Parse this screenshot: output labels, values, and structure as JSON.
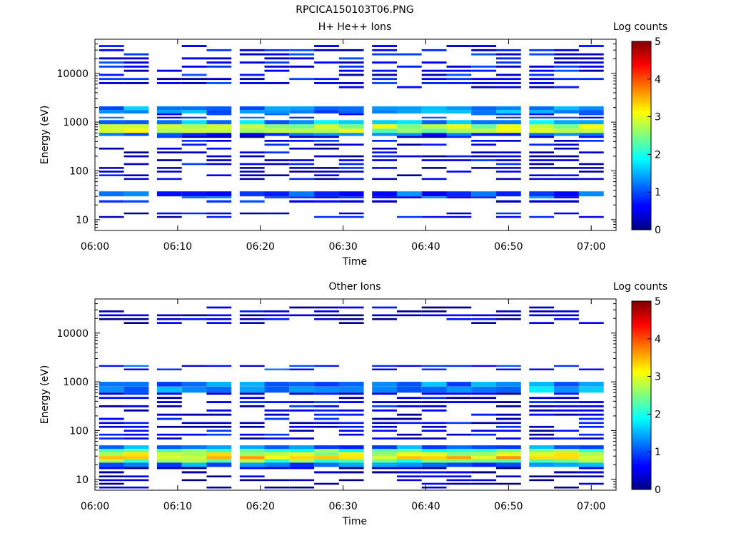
{
  "figure": {
    "title": "RPCICA150103T06.PNG"
  },
  "chart_data": [
    {
      "type": "heatmap",
      "title": "H+ He++ Ions",
      "xlabel": "Time",
      "ylabel": "Energy (eV)",
      "x_ticks": [
        "06:00",
        "06:10",
        "06:20",
        "06:30",
        "06:40",
        "06:50",
        "07:00"
      ],
      "x_range": [
        "06:00",
        "07:03"
      ],
      "y_scale": "log",
      "y_ticks": [
        10,
        100,
        1000,
        10000
      ],
      "y_range": [
        6,
        50000
      ],
      "colorbar": {
        "label": "Log counts",
        "range": [
          0,
          5
        ],
        "ticks": [
          0,
          1,
          2,
          3,
          4,
          5
        ]
      },
      "grid": false,
      "time_bins": [
        "06:02",
        "06:05",
        "06:09",
        "06:12",
        "06:15",
        "06:19",
        "06:22",
        "06:25",
        "06:28",
        "06:31",
        "06:35",
        "06:38",
        "06:41",
        "06:44",
        "06:47",
        "06:50",
        "06:54",
        "06:57",
        "07:00"
      ],
      "energy_bins": [
        [
          4500,
          38000,
          0.6
        ],
        [
          1500,
          2100,
          1.3
        ],
        [
          1100,
          1500,
          0.8
        ],
        [
          900,
          1100,
          1.5
        ],
        [
          600,
          900,
          2.7
        ],
        [
          520,
          600,
          1.0
        ],
        [
          120,
          520,
          0.5
        ],
        [
          60,
          120,
          0.4
        ],
        [
          30,
          38,
          1.0
        ],
        [
          25,
          30,
          0.9
        ],
        [
          20,
          25,
          0.6
        ],
        [
          10,
          14,
          0.5
        ]
      ]
    },
    {
      "type": "heatmap",
      "title": "Other Ions",
      "xlabel": "Time",
      "ylabel": "Energy (eV)",
      "x_ticks": [
        "06:00",
        "06:10",
        "06:20",
        "06:30",
        "06:40",
        "06:50",
        "07:00"
      ],
      "x_range": [
        "06:00",
        "07:03"
      ],
      "y_scale": "log",
      "y_ticks": [
        10,
        100,
        1000,
        10000
      ],
      "y_range": [
        6,
        50000
      ],
      "colorbar": {
        "label": "Log counts",
        "range": [
          0,
          5
        ],
        "ticks": [
          0,
          1,
          2,
          3,
          4,
          5
        ]
      },
      "grid": false,
      "time_bins": [
        "06:02",
        "06:05",
        "06:09",
        "06:12",
        "06:15",
        "06:19",
        "06:22",
        "06:25",
        "06:28",
        "06:31",
        "06:35",
        "06:38",
        "06:41",
        "06:44",
        "06:47",
        "06:50",
        "06:54",
        "06:57",
        "07:00"
      ],
      "energy_bins": [
        [
          14000,
          35000,
          0.3
        ],
        [
          1600,
          2200,
          0.8
        ],
        [
          800,
          1000,
          1.3
        ],
        [
          600,
          800,
          1.4
        ],
        [
          150,
          600,
          0.5
        ],
        [
          60,
          150,
          0.5
        ],
        [
          42,
          50,
          1.2
        ],
        [
          36,
          42,
          2.2
        ],
        [
          30,
          36,
          2.9
        ],
        [
          26,
          30,
          3.2
        ],
        [
          22,
          26,
          2.4
        ],
        [
          18,
          22,
          1.2
        ],
        [
          12,
          18,
          0.3
        ],
        [
          6,
          12,
          0.2
        ]
      ]
    }
  ]
}
